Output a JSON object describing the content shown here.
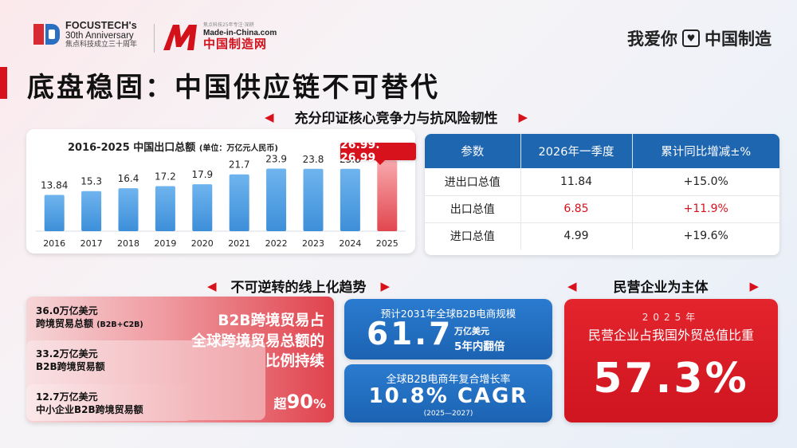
{
  "header": {
    "focus_name": "FOCUSTECH's",
    "focus_anniv": "30th Anniversary",
    "focus_cn": "焦点科技成立三十周年",
    "mic_tagline": "焦点科技25年专注·深耕",
    "mic_domain": "Made-in-China.com",
    "mic_cn": "中国制造网",
    "brand_left": "我爱你",
    "brand_heart": "♥",
    "brand_right": "中国制造"
  },
  "page_title": "底盘稳固：中国供应链不可替代",
  "sections": {
    "top": "充分印证核心竞争力与抗风险韧性",
    "online": "不可逆转的线上化趋势",
    "private": "民营企业为主体"
  },
  "chart_title": "2016-2025 中国出口总额",
  "chart_unit": "(单位：万亿元人民币)",
  "chart_callout": "26.99. 26.99",
  "chart_data": {
    "type": "bar",
    "title": "2016-2025 中国出口总额",
    "unit": "(单位：万亿元人民币)",
    "categories": [
      "2016",
      "2017",
      "2018",
      "2019",
      "2020",
      "2021",
      "2022",
      "2023",
      "2024",
      "2025"
    ],
    "values": [
      13.84,
      15.3,
      16.4,
      17.2,
      17.9,
      21.7,
      23.9,
      23.8,
      23.8,
      26.99
    ],
    "value_labels": [
      "13.84",
      "15.3",
      "16.4",
      "17.2",
      "17.9",
      "21.7",
      "23.9",
      "23.8",
      "23.8",
      ""
    ],
    "ylim": [
      0,
      28
    ],
    "highlight_index": 9,
    "colors": {
      "bar": "#3d8fd9",
      "highlight": "#e2464e"
    }
  },
  "table": {
    "headers": [
      "参数",
      "2026年一季度",
      "累计同比增减±%"
    ],
    "rows": [
      {
        "param": "进出口总值",
        "value": "11.84",
        "change": "+15.0%",
        "highlight": false
      },
      {
        "param": "出口总值",
        "value": "6.85",
        "change": "+11.9%",
        "highlight": true
      },
      {
        "param": "进口总值",
        "value": "4.99",
        "change": "+19.6%",
        "highlight": false
      }
    ]
  },
  "b2b": {
    "item1_value": "36.0万亿美元",
    "item1_label": "跨境贸易总额",
    "item1_note": "(B2B+C2B)",
    "item2_value": "33.2万亿美元",
    "item2_label": "B2B跨境贸易额",
    "item3_value": "12.7万亿美元",
    "item3_label": "中小企业B2B跨境贸易额",
    "slogan_1": "B2B跨境贸易占",
    "slogan_2": "全球跨境贸易总额的",
    "slogan_3": "比例持续",
    "pct_prefix": "超",
    "pct_value": "90",
    "pct_suffix": "%"
  },
  "forecast": {
    "label": "预计2031年全球B2B电商规模",
    "value": "61.7",
    "unit": "万亿美元",
    "note": "5年内翻倍"
  },
  "cagr": {
    "label": "全球B2B电商年复合增长率",
    "value": "10.8% CAGR",
    "range": "(2025—2027)"
  },
  "private": {
    "year": "2025年",
    "desc": "民营企业占我国外贸总值比重",
    "value": "57.3%"
  }
}
